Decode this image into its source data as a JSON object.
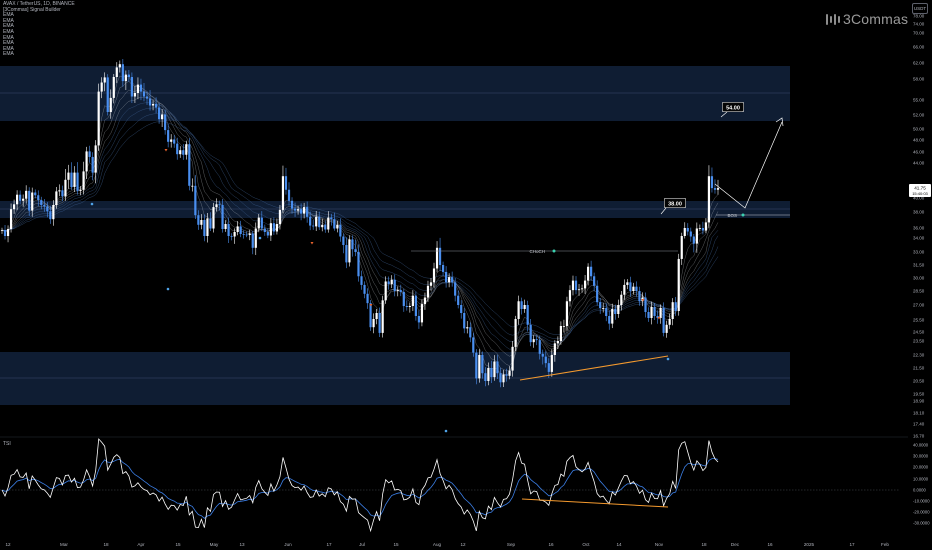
{
  "legend": {
    "symbol": "AVAX / TetherUS, 1D, BINANCE",
    "indicator": "[3Commas] Signal Builder",
    "ema_lines": [
      "EMA",
      "EMA",
      "EMA",
      "EMA",
      "EMA",
      "EMA",
      "EMA",
      "EMA"
    ]
  },
  "brand": {
    "name": "3Commas"
  },
  "currency_badge": "USDT",
  "price_axis": {
    "labels": [
      "78.00",
      "74.00",
      "70.00",
      "66.00",
      "62.00",
      "58.00",
      "55.00",
      "52.00",
      "50.00",
      "48.00",
      "46.00",
      "44.00",
      "42.00",
      "40.00",
      "38.00",
      "36.00",
      "34.00",
      "33.00",
      "31.50",
      "30.00",
      "28.50",
      "27.00",
      "25.50",
      "24.50",
      "23.50",
      "22.30",
      "21.50",
      "20.50",
      "19.50",
      "18.90",
      "18.10",
      "17.40",
      "16.70"
    ],
    "current_price": "41.75",
    "current_countdown": "15:40:03"
  },
  "tsi_axis": {
    "labels": [
      "40.0000",
      "30.0000",
      "20.0000",
      "10.0000",
      "0.0000",
      "-10.0000",
      "-20.0000",
      "-30.0000"
    ]
  },
  "time_axis": {
    "labels": [
      "12",
      "Mar",
      "18",
      "Apr",
      "15",
      "May",
      "13",
      "Jun",
      "17",
      "Jul",
      "15",
      "Aug",
      "12",
      "Sep",
      "16",
      "Oct",
      "14",
      "Nov",
      "18",
      "Dec",
      "16",
      "2025",
      "17",
      "Feb"
    ]
  },
  "annotations": {
    "target_label": "54.00",
    "level_label": "38.00",
    "choch_label": "CHoCH",
    "bos_label": "BOS"
  },
  "tsi_panel": {
    "title": "TSI"
  },
  "colors": {
    "up_candle": "#ffffff",
    "down_candle": "#4a8ff0",
    "zone_fill": "#0f1d33",
    "ema_color": "#3a5b8a",
    "tsi_line": "#ffffff",
    "tsi_signal": "#3b7ee5",
    "divergence": "#f59a2e",
    "buy_marker": "#4fa3e8",
    "sell_marker": "#e8622c"
  },
  "price_series_close": [
    35.6,
    34.4,
    35.8,
    38.4,
    39.1,
    40.6,
    39.6,
    39.9,
    41.3,
    38.2,
    41.0,
    40.5,
    39.7,
    39.0,
    38.8,
    38.1,
    37.1,
    39.0,
    41.2,
    41.4,
    40.3,
    42.6,
    43.2,
    42.0,
    43.2,
    41.3,
    41.5,
    43.3,
    46.1,
    45.1,
    43.2,
    47.1,
    56.2,
    57.5,
    58.4,
    52.6,
    55.3,
    58.5,
    60.9,
    61.7,
    57.7,
    59.1,
    58.5,
    55.5,
    56.0,
    57.2,
    56.2,
    55.5,
    55.2,
    53.9,
    54.2,
    53.5,
    51.4,
    52.1,
    49.8,
    47.7,
    48.1,
    47.4,
    45.6,
    46.3,
    45.5,
    47.3,
    42.1,
    42.1,
    37.6,
    36.4,
    37.0,
    34.4,
    37.2,
    35.9,
    38.7,
    39.1,
    39.0,
    35.8,
    36.5,
    34.4,
    34.3,
    35.2,
    36.2,
    34.8,
    34.7,
    34.6,
    34.9,
    33.3,
    35.9,
    37.3,
    35.9,
    35.2,
    34.5,
    36.6,
    35.3,
    36.5,
    38.3,
    42.9,
    41.5,
    39.6,
    38.5,
    38.2,
    38.4,
    37.8,
    38.7,
    37.4,
    36.3,
    36.2,
    37.4,
    36.1,
    36.4,
    35.7,
    37.3,
    37.1,
    35.9,
    36.4,
    34.3,
    33.5,
    31.8,
    33.9,
    33.2,
    33.0,
    30.2,
    29.2,
    28.2,
    27.2,
    24.9,
    25.6,
    26.2,
    24.4,
    27.5,
    29.6,
    29.3,
    29.8,
    28.5,
    28.6,
    28.4,
    26.9,
    26.8,
    26.9,
    28.0,
    25.9,
    25.3,
    27.1,
    27.8,
    29.1,
    29.5,
    31.1,
    33.3,
    31.5,
    30.7,
    29.5,
    30.1,
    29.5,
    28.0,
    27.0,
    26.2,
    24.8,
    24.9,
    23.9,
    22.5,
    20.7,
    22.3,
    21.1,
    20.5,
    21.5,
    20.8,
    21.9,
    21.1,
    20.4,
    21.0,
    20.9,
    21.3,
    23.0,
    25.6,
    27.4,
    26.6,
    27.0,
    25.1,
    23.4,
    23.7,
    23.6,
    22.4,
    22.2,
    21.8,
    21.2,
    22.3,
    23.3,
    23.5,
    25.0,
    25.0,
    27.4,
    28.6,
    29.7,
    28.6,
    28.7,
    28.8,
    29.7,
    31.3,
    30.2,
    29.1,
    27.3,
    26.7,
    26.7,
    25.9,
    25.2,
    26.6,
    26.1,
    27.0,
    28.1,
    29.2,
    29.5,
    28.5,
    29.0,
    28.5,
    27.4,
    27.8,
    26.3,
    25.7,
    26.8,
    25.9,
    25.7,
    26.7,
    24.4,
    25.1,
    25.6,
    27.3,
    26.4,
    32.2,
    34.4,
    36.0,
    35.3,
    34.3,
    33.6,
    35.9,
    36.0,
    35.5,
    36.7,
    42.9,
    41.8,
    41.5,
    41.8
  ]
}
